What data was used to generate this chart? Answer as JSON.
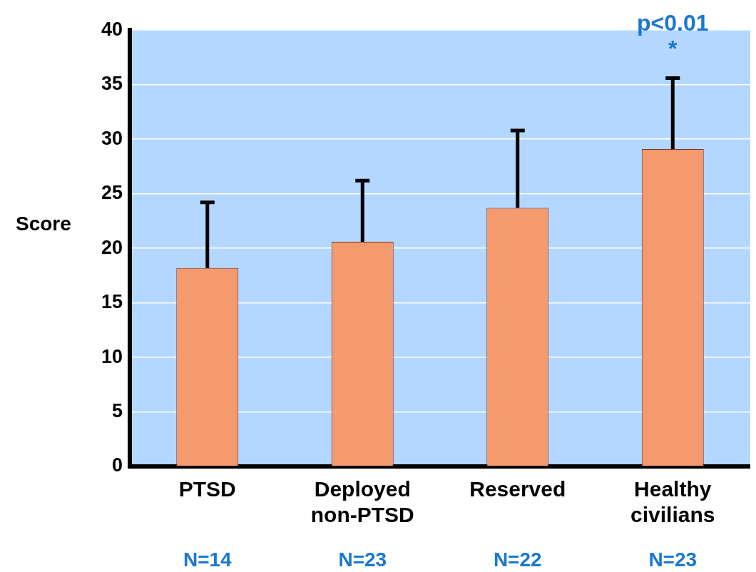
{
  "chart_data": {
    "type": "bar",
    "ylabel": "Score",
    "categories": [
      "PTSD",
      "Deployed non-PTSD",
      "Reserved",
      "Healthy civilians"
    ],
    "values": [
      18.2,
      20.6,
      23.7,
      29.1
    ],
    "errors": [
      [
        18.2,
        24.2
      ],
      [
        20.6,
        26.2
      ],
      [
        23.7,
        30.8
      ],
      [
        29.1,
        35.6
      ]
    ],
    "color": "#f59a6c",
    "ylim": [
      0,
      40
    ],
    "yticks": [
      0,
      5,
      10,
      15,
      20,
      25,
      30,
      35,
      40
    ],
    "grid": "y",
    "legend": false,
    "annotations": [
      "N=14",
      "N=23",
      "N=22",
      "N=23",
      "p<0.01",
      "*"
    ]
  }
}
